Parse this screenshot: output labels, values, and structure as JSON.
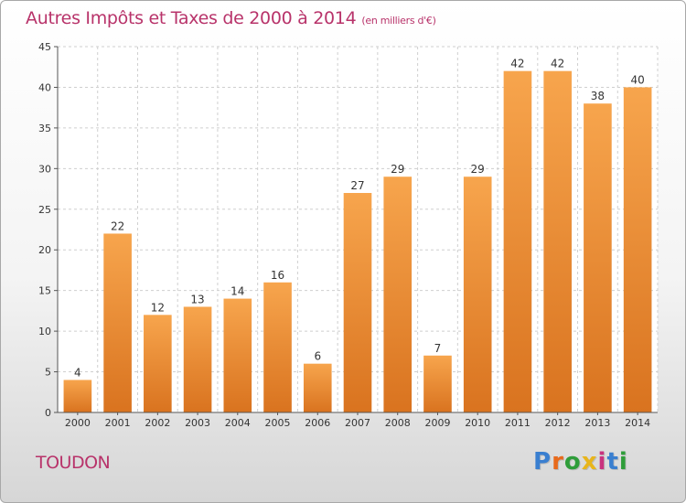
{
  "header": {
    "title": "Autres Impôts et Taxes de 2000 à 2014",
    "unit": "(en milliers d'€)"
  },
  "footer": {
    "place": "TOUDON",
    "brand": "Proxiti",
    "brand_colors": [
      "#3a7fd0",
      "#e86a1c",
      "#2f9d3a",
      "#e8b51c",
      "#c9327e",
      "#3a7fd0",
      "#2f9d3a"
    ]
  },
  "colors": {
    "title": "#b8336a",
    "bar_light": "#f7a54d",
    "bar_dark": "#d9731f"
  },
  "chart_data": {
    "type": "bar",
    "categories": [
      "2000",
      "2001",
      "2002",
      "2003",
      "2004",
      "2005",
      "2006",
      "2007",
      "2008",
      "2009",
      "2010",
      "2011",
      "2012",
      "2013",
      "2014"
    ],
    "values": [
      4,
      22,
      12,
      13,
      14,
      16,
      6,
      27,
      29,
      7,
      29,
      42,
      42,
      38,
      40
    ],
    "data_labels": [
      "4",
      "22",
      "12",
      "13",
      "14",
      "16",
      "6",
      "27",
      "29",
      "7",
      "29",
      "42",
      "42",
      "38",
      "40"
    ],
    "ylim": [
      0,
      45
    ],
    "yticks": [
      0,
      5,
      10,
      15,
      20,
      25,
      30,
      35,
      40,
      45
    ],
    "grid": true,
    "xlabel": "",
    "ylabel": ""
  }
}
